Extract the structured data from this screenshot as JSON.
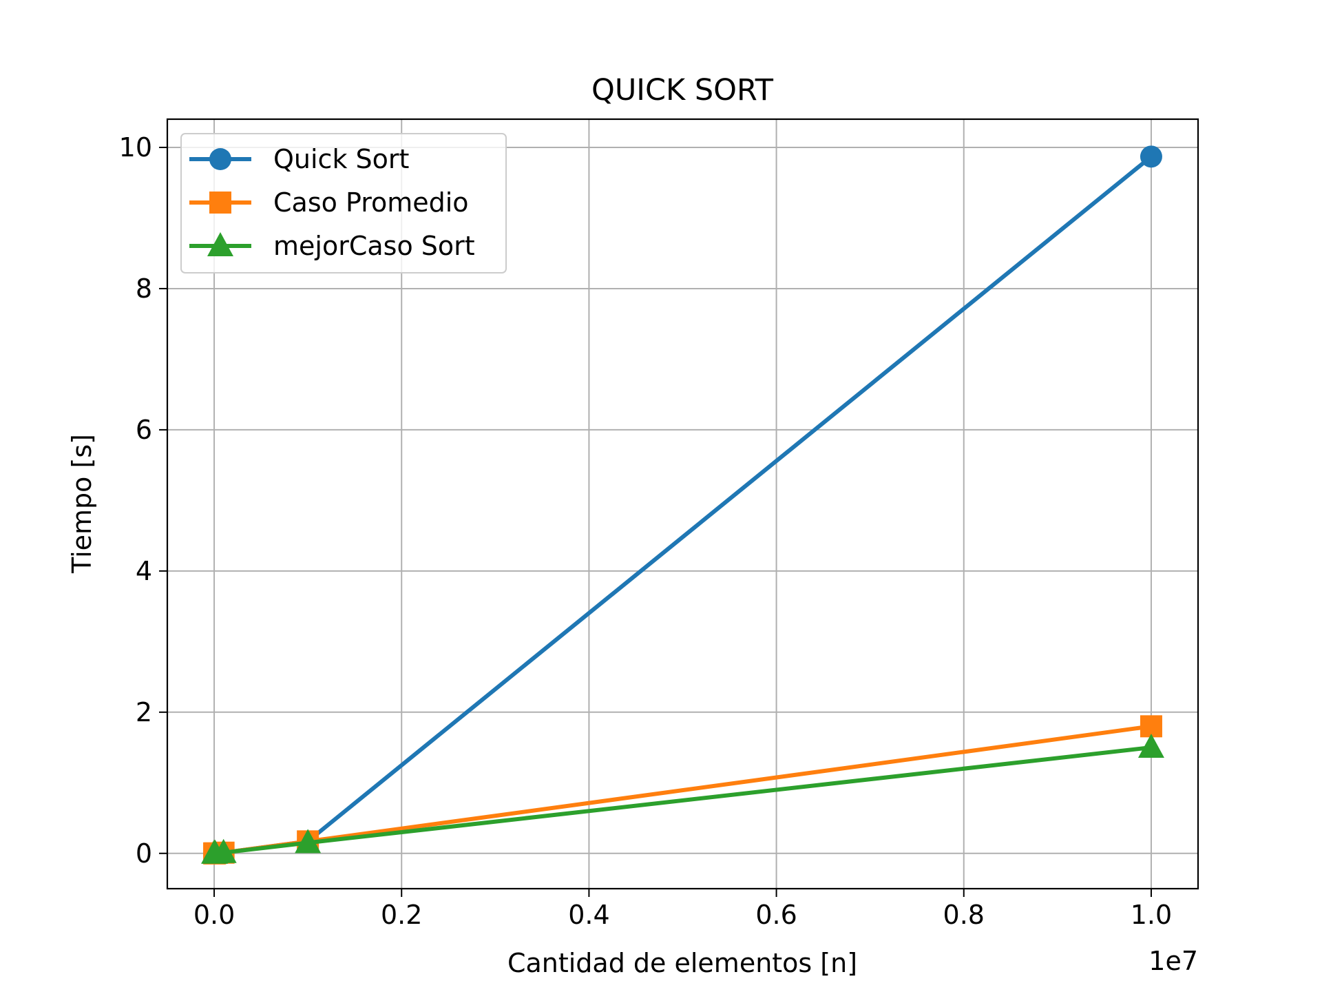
{
  "chart_data": {
    "type": "line",
    "title": "QUICK SORT",
    "xlabel": "Cantidad de elementos [n]",
    "ylabel": "Tiempo [s]",
    "x_offset_text": "1e7",
    "xlim": [
      -0.05,
      1.05
    ],
    "ylim": [
      -0.5,
      10.4
    ],
    "x_ticks": [
      0.0,
      0.2,
      0.4,
      0.6,
      0.8,
      1.0
    ],
    "x_tick_labels": [
      "0.0",
      "0.2",
      "0.4",
      "0.6",
      "0.8",
      "1.0"
    ],
    "y_ticks": [
      0,
      2,
      4,
      6,
      8,
      10
    ],
    "y_tick_labels": [
      "0",
      "2",
      "4",
      "6",
      "8",
      "10"
    ],
    "grid": true,
    "legend_position": "top-left",
    "series": [
      {
        "name": "Quick Sort",
        "color": "#1f77b4",
        "marker": "circle",
        "x": [
          0.0,
          0.001,
          0.01,
          0.1,
          1.0
        ],
        "y": [
          0.0,
          0.0,
          0.01,
          0.17,
          9.87
        ]
      },
      {
        "name": "Caso Promedio",
        "color": "#ff7f0e",
        "marker": "square",
        "x": [
          0.0,
          0.001,
          0.01,
          0.1,
          1.0
        ],
        "y": [
          0.0,
          0.0,
          0.01,
          0.17,
          1.8
        ]
      },
      {
        "name": "mejorCaso Sort",
        "color": "#2ca02c",
        "marker": "triangle",
        "x": [
          0.0,
          0.001,
          0.01,
          0.1,
          1.0
        ],
        "y": [
          0.0,
          0.0,
          0.01,
          0.15,
          1.5
        ]
      }
    ]
  }
}
